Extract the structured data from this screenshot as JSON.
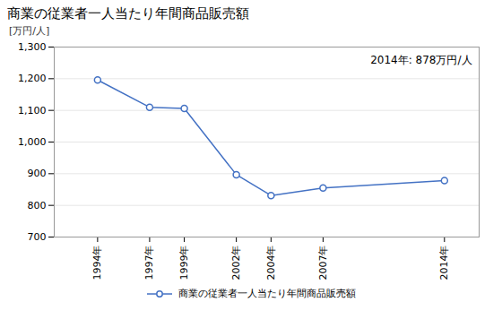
{
  "chart_data": {
    "type": "line",
    "title": "商業の従業者一人当たり年間商品販売額",
    "ylabel": "[万円/人]",
    "annotation": "2014年: 878万円/人",
    "x": [
      1994,
      1997,
      1999,
      2002,
      2004,
      2007,
      2014
    ],
    "series": [
      {
        "name": "商業の従業者一人当たり年間商品販売額",
        "color": "#4472C4",
        "marker": "circle",
        "values": [
          1196,
          1110,
          1106,
          897,
          831,
          855,
          878
        ]
      }
    ],
    "xlim": [
      1991.5,
      2016
    ],
    "xticks": [
      {
        "value": 1994,
        "label": "1994年"
      },
      {
        "value": 1997,
        "label": "1997年"
      },
      {
        "value": 1999,
        "label": "1999年"
      },
      {
        "value": 2002,
        "label": "2002年"
      },
      {
        "value": 2004,
        "label": "2004年"
      },
      {
        "value": 2007,
        "label": "2007年"
      },
      {
        "value": 2014,
        "label": "2014年"
      }
    ],
    "ylim": [
      700,
      1300
    ],
    "yticks": [
      700,
      800,
      900,
      {
        "value": 1000,
        "label": "1,000"
      },
      {
        "value": 1100,
        "label": "1,100"
      },
      {
        "value": 1200,
        "label": "1,200"
      },
      {
        "value": 1300,
        "label": "1,300"
      }
    ],
    "grid": "y",
    "legend": "bottom"
  }
}
